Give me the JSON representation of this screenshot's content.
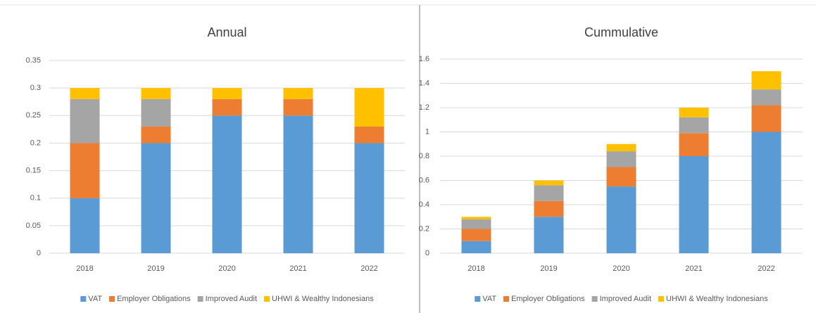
{
  "chart_data": [
    {
      "type": "bar",
      "stacked": true,
      "title": "Annual",
      "categories": [
        "2018",
        "2019",
        "2020",
        "2021",
        "2022"
      ],
      "series": [
        {
          "name": "VAT",
          "color": "#5b9bd5",
          "values": [
            0.1,
            0.2,
            0.25,
            0.25,
            0.2
          ]
        },
        {
          "name": "Employer Obligations",
          "color": "#ed7d31",
          "values": [
            0.1,
            0.03,
            0.03,
            0.03,
            0.03
          ]
        },
        {
          "name": "Improved Audit",
          "color": "#a5a5a5",
          "values": [
            0.08,
            0.05,
            0,
            0,
            0
          ]
        },
        {
          "name": "UHWI & Wealthy Indonesians",
          "color": "#ffc000",
          "values": [
            0.02,
            0.02,
            0.02,
            0.02,
            0.07
          ]
        }
      ],
      "ylim": [
        0,
        0.35
      ],
      "yticks": [
        0,
        0.05,
        0.1,
        0.15,
        0.2,
        0.25,
        0.3,
        0.35
      ],
      "grid": true,
      "legend": "bottom"
    },
    {
      "type": "bar",
      "stacked": true,
      "title": "Cummulative",
      "categories": [
        "2018",
        "2019",
        "2020",
        "2021",
        "2022"
      ],
      "series": [
        {
          "name": "VAT",
          "color": "#5b9bd5",
          "values": [
            0.1,
            0.3,
            0.55,
            0.8,
            1.0
          ]
        },
        {
          "name": "Employer Obligations",
          "color": "#ed7d31",
          "values": [
            0.1,
            0.13,
            0.16,
            0.19,
            0.22
          ]
        },
        {
          "name": "Improved Audit",
          "color": "#a5a5a5",
          "values": [
            0.08,
            0.13,
            0.13,
            0.13,
            0.13
          ]
        },
        {
          "name": "UHWI & Wealthy Indonesians",
          "color": "#ffc000",
          "values": [
            0.02,
            0.04,
            0.06,
            0.08,
            0.15
          ]
        }
      ],
      "ylim": [
        0,
        1.6
      ],
      "yticks": [
        0,
        0.2,
        0.4,
        0.6,
        0.8,
        1,
        1.2,
        1.4,
        1.6
      ],
      "grid": true,
      "legend": "bottom"
    }
  ]
}
